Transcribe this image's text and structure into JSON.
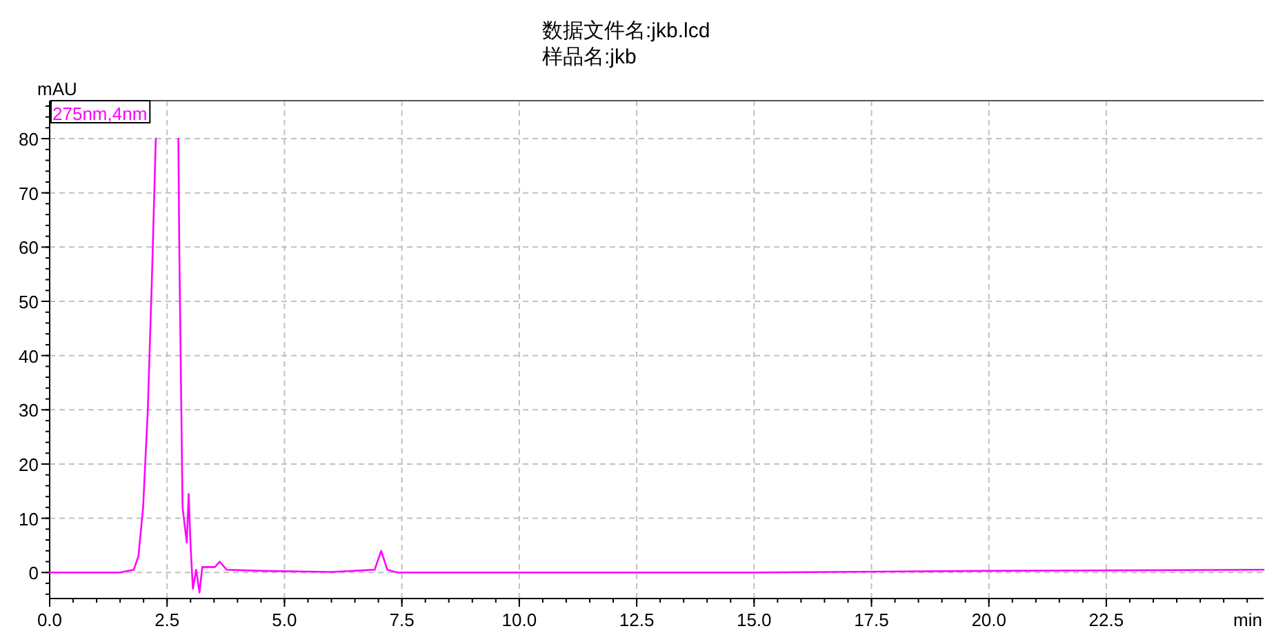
{
  "chart_data": {
    "type": "line",
    "title": "数据文件名:jkb.lcd",
    "subtitle": "样品名:jkb",
    "xlabel": "min",
    "ylabel": "mAU",
    "xlim": [
      0,
      25.85
    ],
    "xticks": [
      {
        "value": 0,
        "label": "0.0"
      },
      {
        "value": 2.5,
        "label": "2.5"
      },
      {
        "value": 5,
        "label": "5.0"
      },
      {
        "value": 7.5,
        "label": "7.5"
      },
      {
        "value": 10,
        "label": "10.0"
      },
      {
        "value": 12.5,
        "label": "12.5"
      },
      {
        "value": 15,
        "label": "15.0"
      },
      {
        "value": 17.5,
        "label": "17.5"
      },
      {
        "value": 20,
        "label": "20.0"
      },
      {
        "value": 22.5,
        "label": "22.5"
      }
    ],
    "ylim": [
      -4.8,
      87
    ],
    "yticks": [
      0,
      10,
      20,
      30,
      40,
      50,
      60,
      70,
      80
    ],
    "grid": true,
    "legend": "top left",
    "series": [
      {
        "name": "275nm,4nm",
        "color": "#ff00ff",
        "x": [
          0,
          1.5,
          1.79,
          1.89,
          1.99,
          2.09,
          2.18,
          2.26,
          2.5,
          2.74,
          2.76,
          2.83,
          2.92,
          2.96,
          3.0,
          3.05,
          3.12,
          3.19,
          3.25,
          3.52,
          3.62,
          3.77,
          4.5,
          6.0,
          6.92,
          7.06,
          7.19,
          7.4,
          10,
          15,
          20,
          25.85
        ],
        "values": [
          0,
          0,
          0.5,
          3,
          12,
          30,
          55,
          80,
          null,
          80,
          60,
          12,
          5.5,
          14.5,
          5,
          -3,
          0.5,
          -3.7,
          1,
          1,
          2,
          0.5,
          0.3,
          0.1,
          0.5,
          4,
          0.5,
          0,
          0,
          0,
          0.3,
          0.5
        ]
      }
    ]
  }
}
